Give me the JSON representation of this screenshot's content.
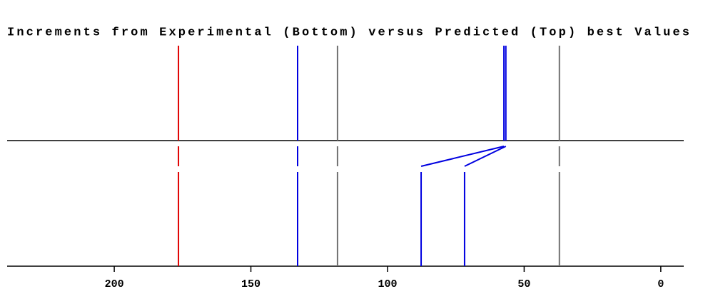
{
  "chart_data": {
    "type": "stick",
    "title": "Increments from Experimental (Bottom) versus Predicted (Top) best Values",
    "top": {
      "values": [
        176.5,
        132.9,
        118.3,
        57.4,
        56.7,
        37.1
      ],
      "colors": [
        "#e00000",
        "#0000e0",
        "#707070",
        "#0000e0",
        "#0000e0",
        "#707070"
      ]
    },
    "bottom": {
      "values": [
        176.5,
        132.9,
        118.3,
        87.7,
        71.8,
        37.1
      ],
      "colors": [
        "#e00000",
        "#0000e0",
        "#707070",
        "#0000e0",
        "#0000e0",
        "#707070"
      ]
    },
    "xlim": [
      239.2,
      -8.4
    ],
    "xticks": [
      200,
      150,
      100,
      50,
      0
    ]
  }
}
